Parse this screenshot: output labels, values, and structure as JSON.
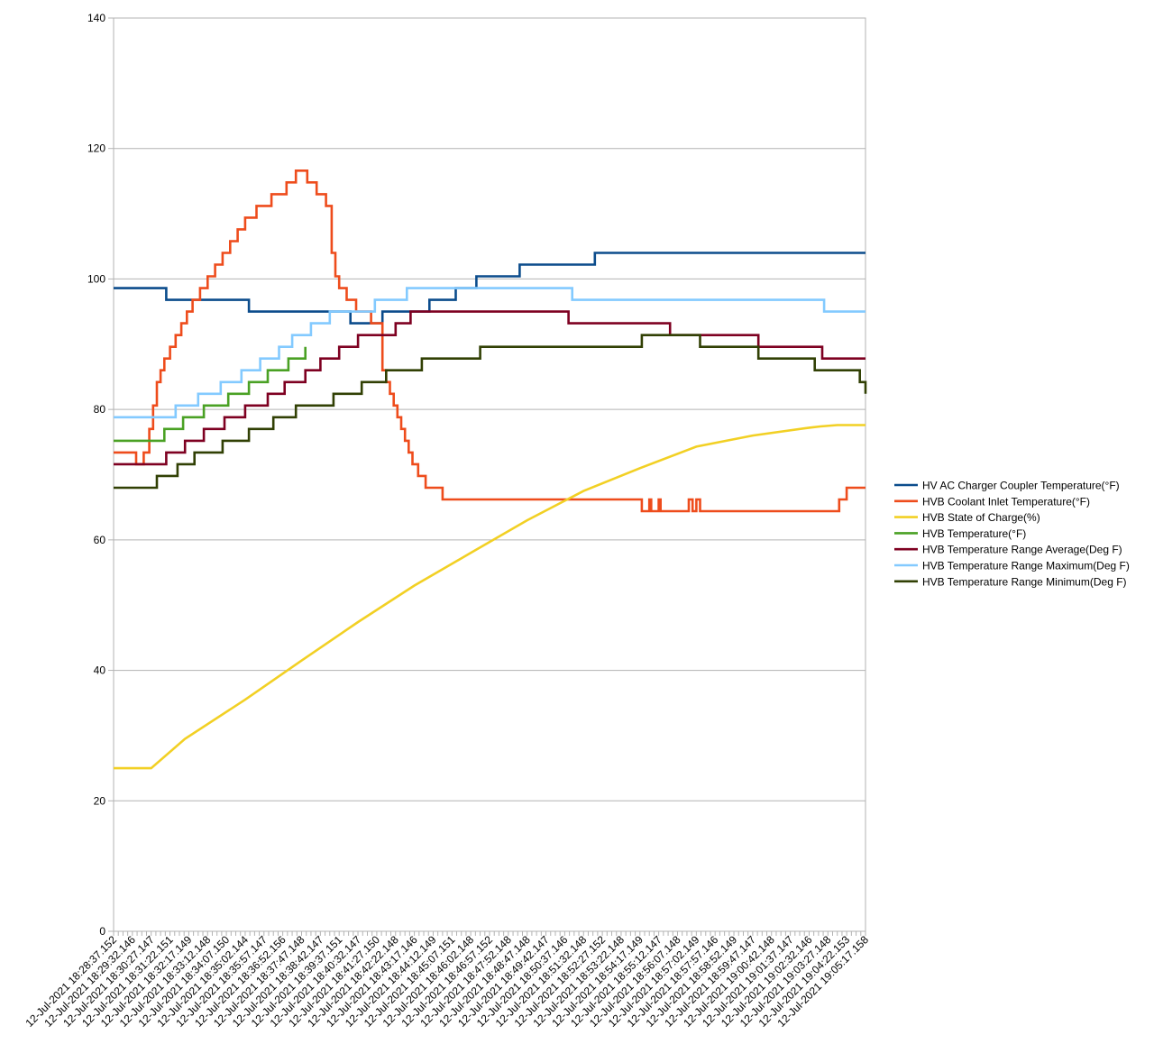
{
  "chart_data": {
    "type": "line",
    "title": "",
    "xlabel": "",
    "ylabel": "",
    "ylim": [
      0,
      140
    ],
    "yticks": [
      0,
      20,
      40,
      60,
      80,
      100,
      120,
      140
    ],
    "grid": "horizontal",
    "legend_position": "right",
    "x_tick_labels": [
      "12-Jul-2021 18:28:37.152",
      "12-Jul-2021 18:29:32.146",
      "12-Jul-2021 18:30:27.147",
      "12-Jul-2021 18:31:22.151",
      "12-Jul-2021 18:32:17.149",
      "12-Jul-2021 18:33:12.148",
      "12-Jul-2021 18:34:07.150",
      "12-Jul-2021 18:35:02.144",
      "12-Jul-2021 18:35:57.147",
      "12-Jul-2021 18:36:52.156",
      "12-Jul-2021 18:37:47.148",
      "12-Jul-2021 18:38:42.147",
      "12-Jul-2021 18:39:37.151",
      "12-Jul-2021 18:40:32.147",
      "12-Jul-2021 18:41:27.150",
      "12-Jul-2021 18:42:22.148",
      "12-Jul-2021 18:43:17.146",
      "12-Jul-2021 18:44:12.149",
      "12-Jul-2021 18:45:07.151",
      "12-Jul-2021 18:46:02.148",
      "12-Jul-2021 18:46:57.152",
      "12-Jul-2021 18:47:52.148",
      "12-Jul-2021 18:48:47.148",
      "12-Jul-2021 18:49:42.147",
      "12-Jul-2021 18:50:37.146",
      "12-Jul-2021 18:51:32.148",
      "12-Jul-2021 18:52:27.152",
      "12-Jul-2021 18:53:22.148",
      "12-Jul-2021 18:54:17.149",
      "12-Jul-2021 18:55:12.147",
      "12-Jul-2021 18:56:07.148",
      "12-Jul-2021 18:57:02.149",
      "12-Jul-2021 18:57:57.146",
      "12-Jul-2021 18:58:52.149",
      "12-Jul-2021 18:59:47.147",
      "12-Jul-2021 19:00:42.148",
      "12-Jul-2021 19:01:37.147",
      "12-Jul-2021 19:02:32.146",
      "12-Jul-2021 19:03:27.148",
      "12-Jul-2021 19:04:22.153",
      "12-Jul-2021 19:05:17.158"
    ],
    "series": [
      {
        "name": "HV AC Charger Coupler Temperature(°F)",
        "color": "#0b4c8c",
        "step": true,
        "x": [
          0,
          2.8,
          7.2,
          12.6,
          14.3,
          15.5,
          16.8,
          18.2,
          19.3,
          21.6,
          25.6,
          40
        ],
        "y": [
          98.6,
          96.8,
          95,
          93.2,
          95,
          95,
          96.8,
          98.6,
          100.4,
          102.2,
          104,
          104
        ]
      },
      {
        "name": "HVB Coolant Inlet Temperature(°F)",
        "color": "#ee4c1c",
        "step": true,
        "x": [
          0,
          1.2,
          1.6,
          1.9,
          2.1,
          2.3,
          2.5,
          2.7,
          3.0,
          3.3,
          3.6,
          3.9,
          4.2,
          4.6,
          5.0,
          5.4,
          5.8,
          6.2,
          6.6,
          7.0,
          7.6,
          8.4,
          9.2,
          9.7,
          10.3,
          10.8,
          11.3,
          11.6,
          11.8,
          12.0,
          12.4,
          12.9,
          13.7,
          14.3,
          14.5,
          14.7,
          14.9,
          15.1,
          15.3,
          15.5,
          15.7,
          15.9,
          16.2,
          16.6,
          17.0,
          17.5,
          18.2,
          19.0,
          20.5,
          25.0,
          28.1,
          28.5,
          28.6,
          29.0,
          29.1,
          30.6,
          30.8,
          31.0,
          31.2,
          31.4,
          38.6,
          39.0,
          39.4,
          40
        ],
        "y": [
          73.4,
          71.6,
          73.4,
          77,
          80.6,
          84.2,
          86,
          87.8,
          89.6,
          91.4,
          93.2,
          95,
          96.8,
          98.6,
          100.4,
          102.2,
          104,
          105.8,
          107.6,
          109.4,
          111.2,
          113,
          114.8,
          116.6,
          114.8,
          113,
          111.2,
          104,
          100.4,
          98.6,
          96.8,
          95,
          93.2,
          86,
          84.2,
          82.4,
          80.6,
          78.8,
          77,
          75.2,
          73.4,
          71.6,
          69.8,
          68,
          68,
          66.2,
          66.2,
          66.2,
          66.2,
          66.2,
          64.4,
          66.2,
          64.4,
          66.2,
          64.4,
          66.2,
          64.4,
          66.2,
          64.4,
          64.4,
          66.2,
          68,
          68,
          68
        ]
      },
      {
        "name": "HVB State of Charge(%)",
        "color": "#f2d024",
        "step": false,
        "x": [
          0,
          2.0,
          3.8,
          7.0,
          10.0,
          13.0,
          16.0,
          19.0,
          22.0,
          25.0,
          28.0,
          31.0,
          34.0,
          37.0,
          37.6,
          38.5,
          40
        ],
        "y": [
          25,
          25,
          29.5,
          35.5,
          41.5,
          47.4,
          53,
          58,
          63,
          67.5,
          71,
          74.3,
          76,
          77.2,
          77.4,
          77.6,
          77.6
        ]
      },
      {
        "name": "HVB Temperature(°F)",
        "color": "#4aa124",
        "step": true,
        "x": [
          0,
          2.7,
          3.7,
          4.8,
          6.1,
          7.2,
          8.2,
          9.3,
          10.2
        ],
        "y": [
          75.2,
          77,
          78.8,
          80.6,
          82.4,
          84.2,
          86,
          87.8,
          89.6
        ]
      },
      {
        "name": "HVB Temperature Range Average(Deg F)",
        "color": "#7e0021",
        "step": true,
        "x": [
          0,
          2.8,
          3.8,
          4.8,
          5.9,
          7.0,
          8.2,
          9.1,
          10.2,
          11.0,
          12.0,
          13.0,
          15.0,
          15.8,
          24.2,
          29.6,
          34.3,
          37.7,
          40
        ],
        "y": [
          71.6,
          73.4,
          75.2,
          77,
          78.8,
          80.6,
          82.4,
          84.2,
          86,
          87.8,
          89.6,
          91.4,
          93.2,
          95,
          93.2,
          91.4,
          89.6,
          87.8,
          87.8
        ]
      },
      {
        "name": "HVB Temperature Range Maximum(Deg F)",
        "color": "#83caff",
        "step": true,
        "x": [
          0,
          3.3,
          4.5,
          5.7,
          6.8,
          7.8,
          8.8,
          9.5,
          10.5,
          11.5,
          12.5,
          13.9,
          15.6,
          17.2,
          24.4,
          37.8,
          40
        ],
        "y": [
          78.8,
          80.6,
          82.4,
          84.2,
          86,
          87.8,
          89.6,
          91.4,
          93.2,
          95,
          95,
          96.8,
          98.6,
          98.6,
          96.8,
          95,
          95
        ]
      },
      {
        "name": "HVB Temperature Range Minimum(Deg F)",
        "color": "#314004",
        "step": true,
        "x": [
          0,
          2.3,
          3.4,
          4.3,
          5.8,
          7.2,
          8.5,
          9.7,
          11.7,
          13.2,
          14.5,
          16.4,
          19.5,
          28.1,
          31.2,
          34.3,
          37.3,
          39.7,
          40
        ],
        "y": [
          68,
          69.8,
          71.6,
          73.4,
          75.2,
          77,
          78.8,
          80.6,
          82.4,
          84.2,
          86,
          87.8,
          89.6,
          91.4,
          89.6,
          87.8,
          86,
          84.2,
          82.4
        ]
      }
    ]
  }
}
